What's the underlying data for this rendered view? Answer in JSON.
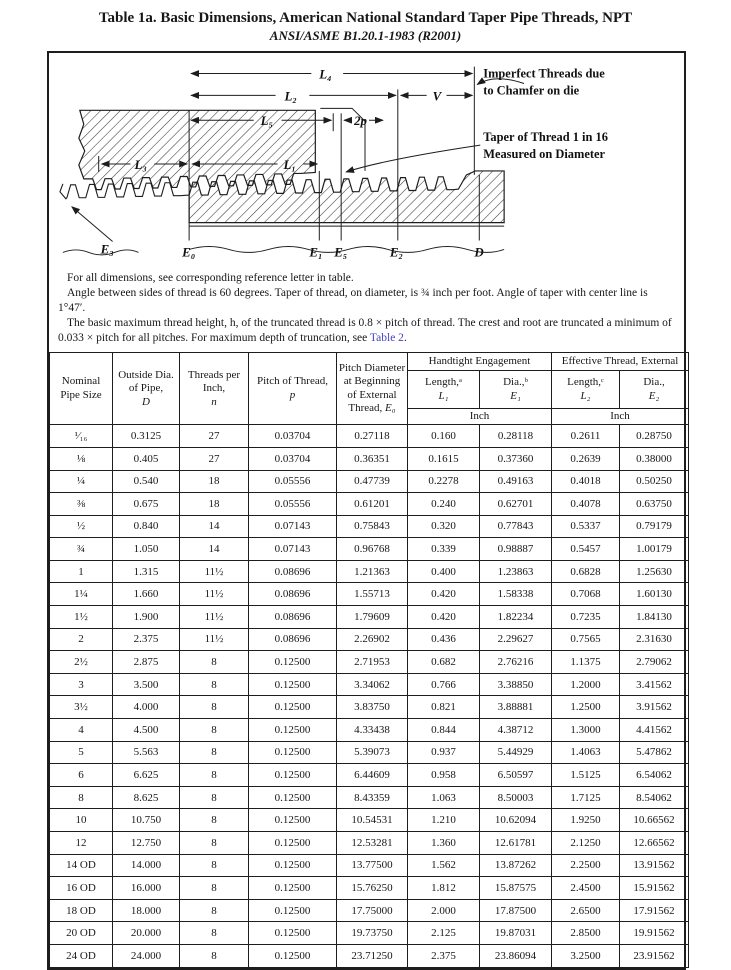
{
  "page": {
    "title": "Table 1a.  Basic Dimensions, American National Standard Taper Pipe Threads, NPT",
    "subtitle": "ANSI/ASME B1.20.1-1983 (R2001)"
  },
  "diagram": {
    "dims": {
      "l4": "L₄",
      "l2": "L₂",
      "v": "V",
      "l5": "L₅",
      "twop": "2p",
      "l3": "L₃",
      "l1": "L₁"
    },
    "refs": {
      "e3": "E₃",
      "e0": "E₀",
      "e1": "E₁",
      "e5": "E₅",
      "e2": "E₂",
      "d": "D"
    },
    "annotations": {
      "imperfect": [
        "Imperfect Threads due",
        "to Chamfer on die"
      ],
      "taper": [
        "Taper of Thread 1 in 16",
        "Measured on Diameter"
      ]
    }
  },
  "notes": {
    "p1": "For all dimensions, see corresponding reference letter in table.",
    "p2": "Angle between sides of thread is 60 degrees. Taper of thread, on diameter, is ¾ inch per foot. Angle of taper with center line is 1°47′.",
    "p3_pre": "The basic maximum thread height, h, of the truncated thread is 0.8 × pitch of thread. The crest and root are truncated a minimum of 0.033 × pitch for all pitches. For maximum depth of truncation, see ",
    "p3_link": "Table 2",
    "p3_post": "."
  },
  "table": {
    "head": {
      "c1": "Nominal Pipe Size",
      "c2": {
        "l": "Outside Dia. of Pipe,",
        "s": "D"
      },
      "c3": {
        "l": "Threads per Inch,",
        "s": "n"
      },
      "c4": {
        "l": "Pitch of Thread,",
        "s": "p"
      },
      "c5": {
        "l": "Pitch Diameter at Beginning of External Thread,",
        "s": "E₀"
      },
      "handtight": {
        "title": "Handtight Engagement",
        "len_l": "Length,ᵃ",
        "len_s": "L₁",
        "dia_l": "Dia.,ᵇ",
        "dia_s": "E₁",
        "unit": "Inch"
      },
      "effective": {
        "title": "Effective Thread, External",
        "len_l": "Length,ᶜ",
        "len_s": "L₂",
        "dia_l": "Dia.,",
        "dia_s": "E₂",
        "unit": "Inch"
      }
    },
    "rows": [
      [
        "¹⁄₁₆",
        "0.3125",
        "27",
        "0.03704",
        "0.27118",
        "0.160",
        "0.28118",
        "0.2611",
        "0.28750"
      ],
      [
        "⅛",
        "0.405",
        "27",
        "0.03704",
        "0.36351",
        "0.1615",
        "0.37360",
        "0.2639",
        "0.38000"
      ],
      [
        "¼",
        "0.540",
        "18",
        "0.05556",
        "0.47739",
        "0.2278",
        "0.49163",
        "0.4018",
        "0.50250"
      ],
      [
        "⅜",
        "0.675",
        "18",
        "0.05556",
        "0.61201",
        "0.240",
        "0.62701",
        "0.4078",
        "0.63750"
      ],
      [
        "½",
        "0.840",
        "14",
        "0.07143",
        "0.75843",
        "0.320",
        "0.77843",
        "0.5337",
        "0.79179"
      ],
      [
        "¾",
        "1.050",
        "14",
        "0.07143",
        "0.96768",
        "0.339",
        "0.98887",
        "0.5457",
        "1.00179"
      ],
      [
        "1",
        "1.315",
        "11½",
        "0.08696",
        "1.21363",
        "0.400",
        "1.23863",
        "0.6828",
        "1.25630"
      ],
      [
        "1¼",
        "1.660",
        "11½",
        "0.08696",
        "1.55713",
        "0.420",
        "1.58338",
        "0.7068",
        "1.60130"
      ],
      [
        "1½",
        "1.900",
        "11½",
        "0.08696",
        "1.79609",
        "0.420",
        "1.82234",
        "0.7235",
        "1.84130"
      ],
      [
        "2",
        "2.375",
        "11½",
        "0.08696",
        "2.26902",
        "0.436",
        "2.29627",
        "0.7565",
        "2.31630"
      ],
      [
        "2½",
        "2.875",
        "8",
        "0.12500",
        "2.71953",
        "0.682",
        "2.76216",
        "1.1375",
        "2.79062"
      ],
      [
        "3",
        "3.500",
        "8",
        "0.12500",
        "3.34062",
        "0.766",
        "3.38850",
        "1.2000",
        "3.41562"
      ],
      [
        "3½",
        "4.000",
        "8",
        "0.12500",
        "3.83750",
        "0.821",
        "3.88881",
        "1.2500",
        "3.91562"
      ],
      [
        "4",
        "4.500",
        "8",
        "0.12500",
        "4.33438",
        "0.844",
        "4.38712",
        "1.3000",
        "4.41562"
      ],
      [
        "5",
        "5.563",
        "8",
        "0.12500",
        "5.39073",
        "0.937",
        "5.44929",
        "1.4063",
        "5.47862"
      ],
      [
        "6",
        "6.625",
        "8",
        "0.12500",
        "6.44609",
        "0.958",
        "6.50597",
        "1.5125",
        "6.54062"
      ],
      [
        "8",
        "8.625",
        "8",
        "0.12500",
        "8.43359",
        "1.063",
        "8.50003",
        "1.7125",
        "8.54062"
      ],
      [
        "10",
        "10.750",
        "8",
        "0.12500",
        "10.54531",
        "1.210",
        "10.62094",
        "1.9250",
        "10.66562"
      ],
      [
        "12",
        "12.750",
        "8",
        "0.12500",
        "12.53281",
        "1.360",
        "12.61781",
        "2.1250",
        "12.66562"
      ],
      [
        "14 OD",
        "14.000",
        "8",
        "0.12500",
        "13.77500",
        "1.562",
        "13.87262",
        "2.2500",
        "13.91562"
      ],
      [
        "16 OD",
        "16.000",
        "8",
        "0.12500",
        "15.76250",
        "1.812",
        "15.87575",
        "2.4500",
        "15.91562"
      ],
      [
        "18 OD",
        "18.000",
        "8",
        "0.12500",
        "17.75000",
        "2.000",
        "17.87500",
        "2.6500",
        "17.91562"
      ],
      [
        "20 OD",
        "20.000",
        "8",
        "0.12500",
        "19.73750",
        "2.125",
        "19.87031",
        "2.8500",
        "19.91562"
      ],
      [
        "24 OD",
        "24.000",
        "8",
        "0.12500",
        "23.71250",
        "2.375",
        "23.86094",
        "3.2500",
        "23.91562"
      ]
    ]
  }
}
